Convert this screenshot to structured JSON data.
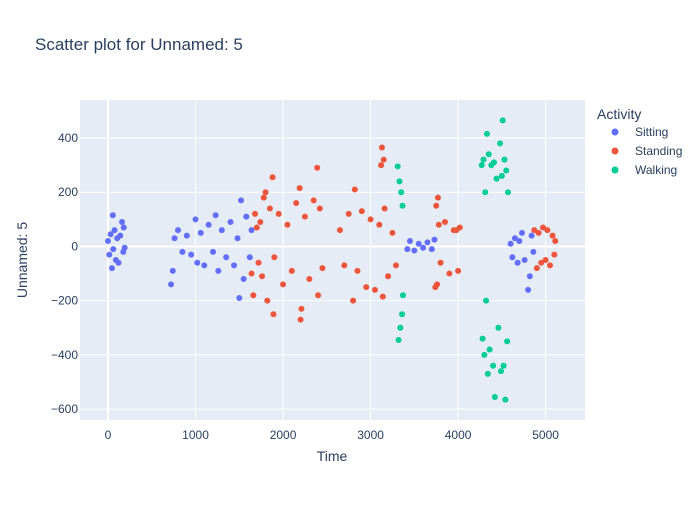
{
  "chart_data": {
    "type": "scatter",
    "title": "Scatter plot for Unnamed: 5",
    "xlabel": "Time",
    "ylabel": "Unnamed: 5",
    "xlim": [
      -320,
      5450
    ],
    "ylim": [
      -640,
      540
    ],
    "x_ticks": [
      0,
      1000,
      2000,
      3000,
      4000,
      5000
    ],
    "x_tick_labels": [
      "0",
      "1000",
      "2000",
      "3000",
      "4000",
      "5000"
    ],
    "y_ticks": [
      -600,
      -400,
      -200,
      0,
      200,
      400
    ],
    "y_tick_labels": [
      "−600",
      "−400",
      "−200",
      "0",
      "200",
      "400"
    ],
    "grid": true,
    "legend": {
      "title": "Activity",
      "position": "right"
    },
    "series": [
      {
        "name": "Sitting",
        "color": "#636efa",
        "points": [
          [
            0,
            20
          ],
          [
            15,
            -30
          ],
          [
            30,
            45
          ],
          [
            45,
            -80
          ],
          [
            55,
            115
          ],
          [
            60,
            -10
          ],
          [
            75,
            60
          ],
          [
            90,
            -50
          ],
          [
            105,
            30
          ],
          [
            120,
            -60
          ],
          [
            140,
            40
          ],
          [
            160,
            90
          ],
          [
            175,
            -20
          ],
          [
            180,
            70
          ],
          [
            190,
            -5
          ],
          [
            720,
            -140
          ],
          [
            740,
            -90
          ],
          [
            760,
            30
          ],
          [
            800,
            60
          ],
          [
            850,
            -20
          ],
          [
            900,
            40
          ],
          [
            950,
            -30
          ],
          [
            1000,
            100
          ],
          [
            1020,
            -60
          ],
          [
            1060,
            50
          ],
          [
            1100,
            -70
          ],
          [
            1150,
            80
          ],
          [
            1200,
            -20
          ],
          [
            1230,
            115
          ],
          [
            1260,
            -90
          ],
          [
            1300,
            60
          ],
          [
            1350,
            -40
          ],
          [
            1400,
            90
          ],
          [
            1440,
            -70
          ],
          [
            1480,
            30
          ],
          [
            1500,
            -190
          ],
          [
            1520,
            170
          ],
          [
            1550,
            -120
          ],
          [
            1580,
            110
          ],
          [
            1620,
            -40
          ],
          [
            1640,
            60
          ],
          [
            3420,
            -10
          ],
          [
            3450,
            20
          ],
          [
            3500,
            -15
          ],
          [
            3550,
            10
          ],
          [
            3600,
            -5
          ],
          [
            3650,
            15
          ],
          [
            3700,
            -10
          ],
          [
            3730,
            25
          ],
          [
            4600,
            10
          ],
          [
            4620,
            -40
          ],
          [
            4650,
            30
          ],
          [
            4680,
            -60
          ],
          [
            4700,
            20
          ],
          [
            4730,
            50
          ],
          [
            4760,
            -50
          ],
          [
            4800,
            -160
          ],
          [
            4820,
            -110
          ],
          [
            4840,
            40
          ],
          [
            4860,
            -20
          ]
        ]
      },
      {
        "name": "Standing",
        "color": "#ef553b",
        "points": [
          [
            1640,
            -100
          ],
          [
            1660,
            -180
          ],
          [
            1680,
            120
          ],
          [
            1700,
            70
          ],
          [
            1720,
            -60
          ],
          [
            1740,
            90
          ],
          [
            1760,
            -110
          ],
          [
            1780,
            180
          ],
          [
            1800,
            200
          ],
          [
            1820,
            -200
          ],
          [
            1850,
            140
          ],
          [
            1880,
            255
          ],
          [
            1890,
            -250
          ],
          [
            1900,
            -40
          ],
          [
            1950,
            120
          ],
          [
            2000,
            -140
          ],
          [
            2050,
            80
          ],
          [
            2100,
            -90
          ],
          [
            2150,
            160
          ],
          [
            2190,
            215
          ],
          [
            2200,
            -270
          ],
          [
            2210,
            -230
          ],
          [
            2250,
            110
          ],
          [
            2300,
            -120
          ],
          [
            2350,
            170
          ],
          [
            2390,
            290
          ],
          [
            2400,
            -180
          ],
          [
            2420,
            140
          ],
          [
            2450,
            -80
          ],
          [
            2650,
            60
          ],
          [
            2700,
            -70
          ],
          [
            2750,
            120
          ],
          [
            2800,
            -200
          ],
          [
            2820,
            210
          ],
          [
            2850,
            -90
          ],
          [
            2900,
            130
          ],
          [
            2950,
            -150
          ],
          [
            3000,
            100
          ],
          [
            3050,
            -160
          ],
          [
            3100,
            80
          ],
          [
            3120,
            300
          ],
          [
            3130,
            365
          ],
          [
            3140,
            -185
          ],
          [
            3150,
            320
          ],
          [
            3160,
            140
          ],
          [
            3200,
            -110
          ],
          [
            3250,
            50
          ],
          [
            3290,
            -70
          ],
          [
            3740,
            -150
          ],
          [
            3750,
            150
          ],
          [
            3760,
            -140
          ],
          [
            3770,
            180
          ],
          [
            3780,
            80
          ],
          [
            3800,
            -60
          ],
          [
            3850,
            90
          ],
          [
            3900,
            -100
          ],
          [
            3950,
            60
          ],
          [
            3980,
            60
          ],
          [
            4000,
            -90
          ],
          [
            4020,
            70
          ],
          [
            4870,
            60
          ],
          [
            4900,
            -80
          ],
          [
            4920,
            50
          ],
          [
            4950,
            -60
          ],
          [
            4970,
            70
          ],
          [
            5000,
            -50
          ],
          [
            5020,
            60
          ],
          [
            5050,
            -70
          ],
          [
            5080,
            40
          ],
          [
            5100,
            -30
          ],
          [
            5110,
            20
          ]
        ]
      },
      {
        "name": "Walking",
        "color": "#00cc96",
        "points": [
          [
            3310,
            295
          ],
          [
            3320,
            -345
          ],
          [
            3330,
            240
          ],
          [
            3340,
            -300
          ],
          [
            3350,
            200
          ],
          [
            3360,
            -250
          ],
          [
            3365,
            150
          ],
          [
            3370,
            -180
          ],
          [
            4270,
            300
          ],
          [
            4280,
            -340
          ],
          [
            4290,
            320
          ],
          [
            4300,
            -400
          ],
          [
            4310,
            200
          ],
          [
            4320,
            -200
          ],
          [
            4330,
            415
          ],
          [
            4340,
            -470
          ],
          [
            4350,
            340
          ],
          [
            4360,
            -380
          ],
          [
            4380,
            300
          ],
          [
            4400,
            -440
          ],
          [
            4410,
            310
          ],
          [
            4420,
            -555
          ],
          [
            4440,
            250
          ],
          [
            4460,
            -300
          ],
          [
            4480,
            380
          ],
          [
            4490,
            -460
          ],
          [
            4500,
            260
          ],
          [
            4510,
            465
          ],
          [
            4520,
            -440
          ],
          [
            4530,
            320
          ],
          [
            4540,
            -565
          ],
          [
            4550,
            280
          ],
          [
            4560,
            -350
          ],
          [
            4570,
            200
          ]
        ]
      }
    ]
  }
}
